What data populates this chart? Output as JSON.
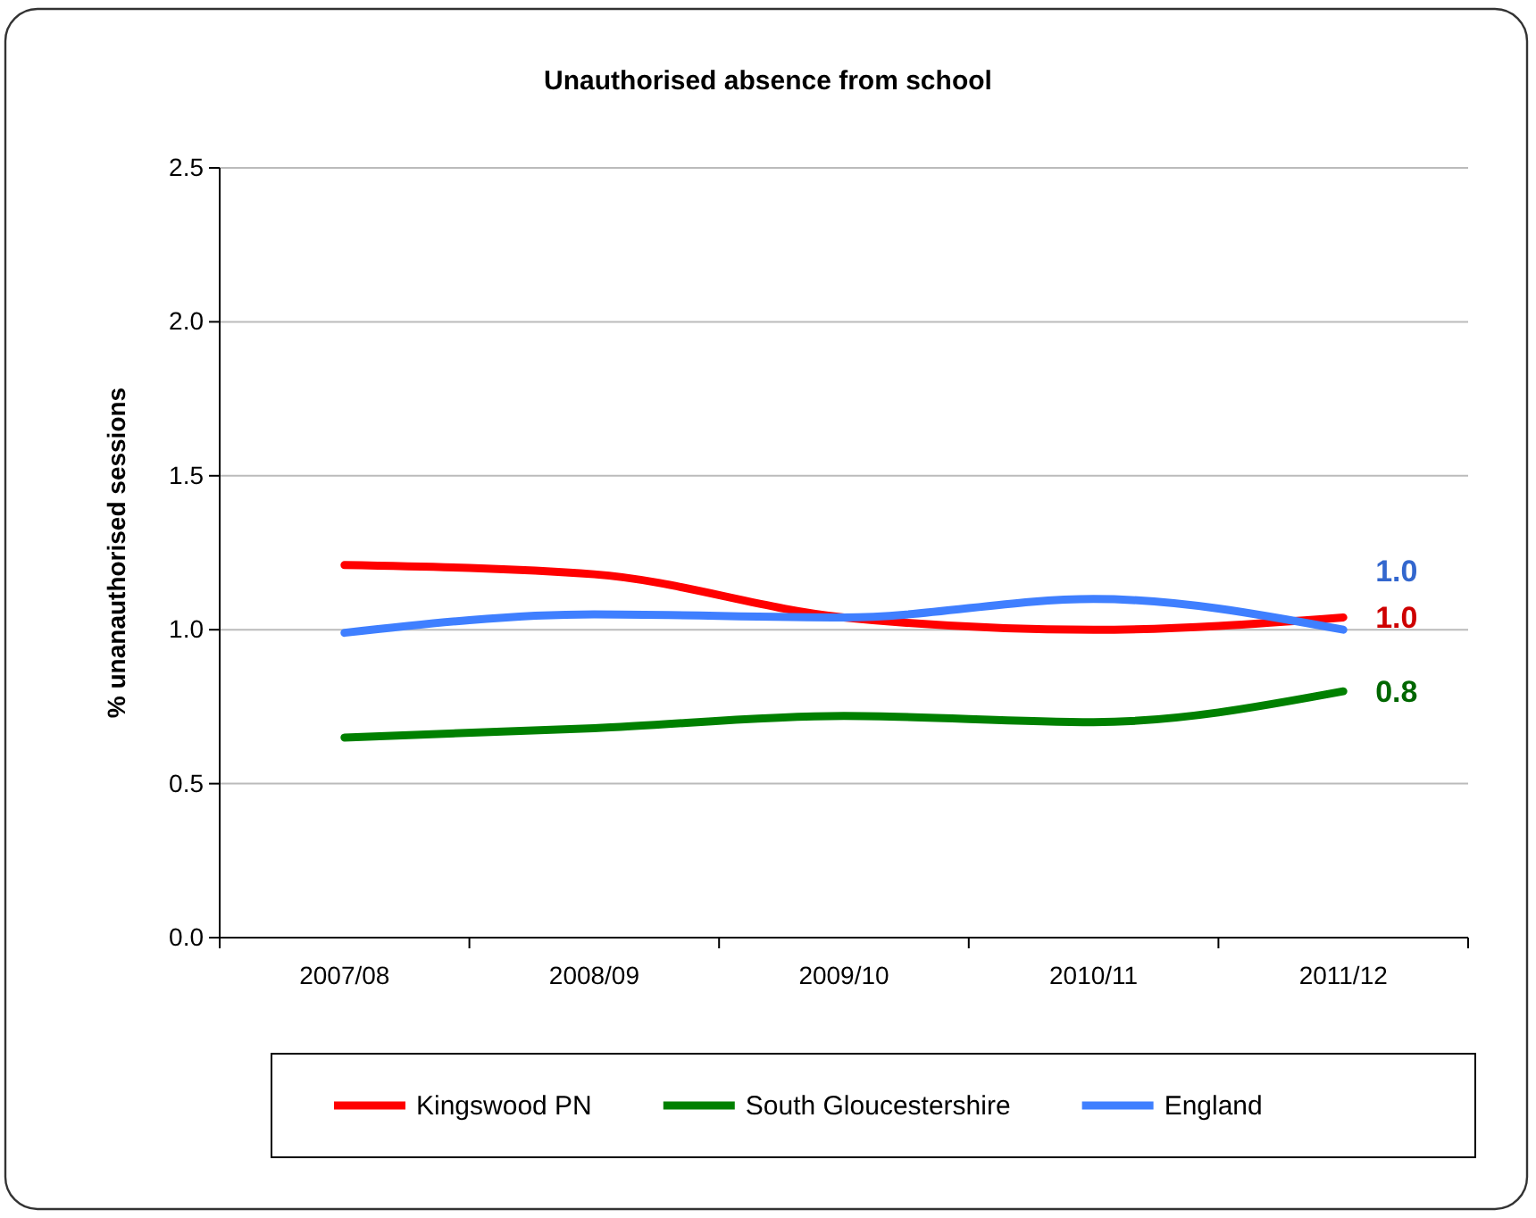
{
  "chart_data": {
    "type": "line",
    "title": "Unauthorised absence from school",
    "ylabel": "% unanauthorised sessions",
    "categories": [
      "2007/08",
      "2008/09",
      "2009/10",
      "2010/11",
      "2011/12"
    ],
    "series": [
      {
        "name": "Kingswood PN",
        "color": "#ff0000",
        "values": [
          1.21,
          1.18,
          1.04,
          1.0,
          1.04
        ],
        "value_labels": [
          null,
          null,
          null,
          null,
          "1.0"
        ]
      },
      {
        "name": "South Gloucestershire",
        "color": "#008000",
        "values": [
          0.65,
          0.68,
          0.72,
          0.7,
          0.8
        ],
        "value_labels": [
          null,
          null,
          null,
          null,
          "0.8"
        ]
      },
      {
        "name": "England",
        "color": "#3f7fff",
        "values": [
          0.99,
          1.05,
          1.04,
          1.1,
          1.0
        ],
        "value_labels": [
          null,
          null,
          null,
          null,
          "1.0"
        ]
      }
    ],
    "ylim": [
      0,
      2.5
    ],
    "yticks": [
      {
        "value": 0,
        "label": "0.0"
      },
      {
        "value": 0.5,
        "label": "0.5"
      },
      {
        "value": 1,
        "label": "1.0"
      },
      {
        "value": 1.5,
        "label": "1.5"
      },
      {
        "value": 2,
        "label": "2.0"
      },
      {
        "value": 2.5,
        "label": "2.5"
      }
    ],
    "grid": "y",
    "legend": "bottom",
    "marker": "none",
    "line_style": "solid"
  }
}
